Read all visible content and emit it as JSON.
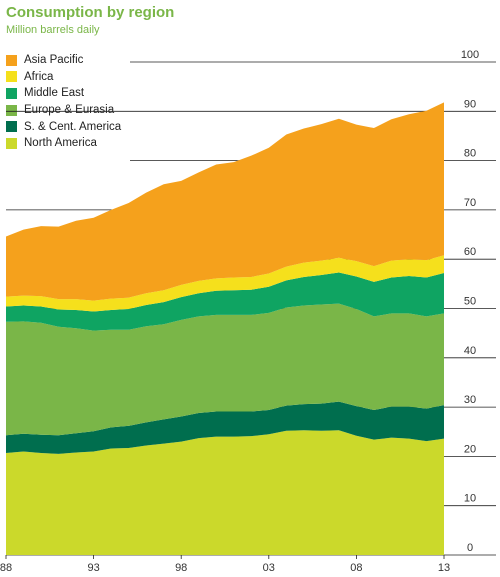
{
  "chart_data": {
    "type": "area",
    "stacked": true,
    "title": "Consumption by region",
    "subtitle": "Million barrels daily",
    "x": [
      1988,
      1989,
      1990,
      1991,
      1992,
      1993,
      1994,
      1995,
      1996,
      1997,
      1998,
      1999,
      2000,
      2001,
      2002,
      2003,
      2004,
      2005,
      2006,
      2007,
      2008,
      2009,
      2010,
      2011,
      2012,
      2013
    ],
    "x_tick_labels": [
      "88",
      "93",
      "98",
      "03",
      "08",
      "13"
    ],
    "x_tick_values": [
      1988,
      1993,
      1998,
      2003,
      2008,
      2013
    ],
    "ylim": [
      0,
      100
    ],
    "y_ticks": [
      0,
      10,
      20,
      30,
      40,
      50,
      60,
      70,
      80,
      90,
      100
    ],
    "grid": "horizontal",
    "legend_position": "top-left",
    "series": [
      {
        "name": "North America",
        "color": "#cbd92b",
        "values": [
          20.7,
          21.0,
          20.7,
          20.5,
          20.8,
          21.0,
          21.6,
          21.7,
          22.2,
          22.6,
          23.0,
          23.7,
          24.0,
          24.0,
          24.1,
          24.5,
          25.2,
          25.3,
          25.2,
          25.3,
          24.2,
          23.4,
          23.8,
          23.6,
          23.1,
          23.6
        ]
      },
      {
        "name": "S. & Cent. America",
        "color": "#006e4e",
        "values": [
          3.6,
          3.6,
          3.7,
          3.8,
          3.9,
          4.1,
          4.3,
          4.5,
          4.7,
          4.9,
          5.1,
          5.1,
          5.1,
          5.1,
          5.0,
          4.9,
          5.1,
          5.3,
          5.5,
          5.8,
          6.0,
          6.0,
          6.3,
          6.5,
          6.6,
          6.8
        ]
      },
      {
        "name": "Europe & Eurasia",
        "color": "#7ab648",
        "values": [
          23.0,
          22.8,
          22.7,
          22.0,
          21.3,
          20.4,
          19.8,
          19.5,
          19.5,
          19.3,
          19.6,
          19.6,
          19.6,
          19.6,
          19.6,
          19.7,
          19.9,
          20.0,
          20.1,
          19.9,
          19.7,
          19.0,
          18.9,
          18.9,
          18.7,
          18.6
        ]
      },
      {
        "name": "Middle East",
        "color": "#0fa462",
        "values": [
          3.1,
          3.2,
          3.3,
          3.5,
          3.7,
          3.9,
          4.0,
          4.2,
          4.3,
          4.5,
          4.6,
          4.7,
          4.9,
          5.0,
          5.1,
          5.3,
          5.5,
          5.8,
          6.0,
          6.3,
          6.6,
          7.0,
          7.3,
          7.6,
          7.9,
          8.2
        ]
      },
      {
        "name": "Africa",
        "color": "#f5e01c",
        "values": [
          2.0,
          2.0,
          2.1,
          2.1,
          2.2,
          2.2,
          2.3,
          2.3,
          2.4,
          2.4,
          2.5,
          2.5,
          2.5,
          2.6,
          2.6,
          2.7,
          2.8,
          2.9,
          2.9,
          3.0,
          3.1,
          3.2,
          3.4,
          3.4,
          3.5,
          3.6
        ]
      },
      {
        "name": "Asia Pacific",
        "color": "#f5a11c",
        "values": [
          12.2,
          13.4,
          14.2,
          14.7,
          15.9,
          16.8,
          18.0,
          19.2,
          20.4,
          21.5,
          21.1,
          22.0,
          23.1,
          23.4,
          24.6,
          25.5,
          26.8,
          27.2,
          27.7,
          28.2,
          27.7,
          28.0,
          28.7,
          29.4,
          30.3,
          31.0
        ]
      }
    ]
  }
}
